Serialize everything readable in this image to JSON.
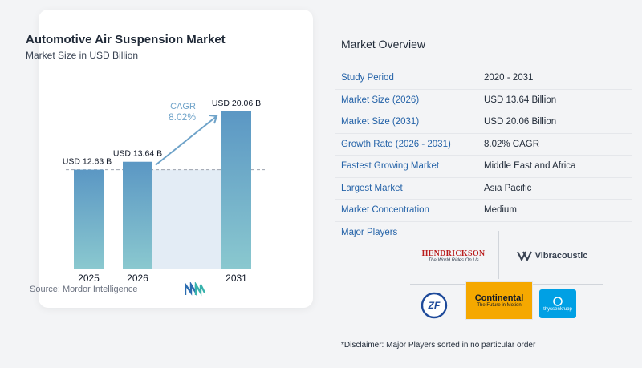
{
  "chart": {
    "title": "Automotive Air Suspension Market",
    "subtitle": "Market Size in USD Billion",
    "source": "Source:  Mordor Intelligence",
    "cagr_label": "CAGR",
    "cagr_value": "8.02%"
  },
  "chart_data": {
    "type": "bar",
    "categories": [
      "2025",
      "2026",
      "2031"
    ],
    "values": [
      12.63,
      13.64,
      20.06
    ],
    "data_labels": [
      "USD 12.63 B",
      "USD 13.64 B",
      "USD 20.06 B"
    ],
    "title": "Automotive Air Suspension Market",
    "subtitle": "Market Size in USD Billion",
    "xlabel": "",
    "ylabel": "",
    "ylim": [
      0,
      20.06
    ],
    "annotations": [
      "CAGR",
      "8.02%"
    ],
    "grid": false
  },
  "overview": {
    "title": "Market Overview",
    "rows": [
      {
        "label": "Study Period",
        "value": "2020 - 2031"
      },
      {
        "label": "Market Size (2026)",
        "value": "USD 13.64 Billion"
      },
      {
        "label": "Market Size (2031)",
        "value": "USD 20.06 Billion"
      },
      {
        "label": "Growth Rate (2026 - 2031)",
        "value": "8.02% CAGR"
      },
      {
        "label": "Fastest Growing Market",
        "value": "Middle East and Africa"
      },
      {
        "label": "Largest Market",
        "value": "Asia Pacific"
      },
      {
        "label": "Market Concentration",
        "value": "Medium"
      }
    ]
  },
  "players": {
    "title": "Major Players",
    "hendrickson": "HENDRICKSON",
    "hendrickson_tagline": "The World Rides On Us",
    "vibracoustic": "Vibracoustic",
    "zf": "ZF",
    "continental": "Continental",
    "continental_tagline": "The Future in Motion",
    "thyssenkrupp": "thyssenkrupp"
  },
  "disclaimer": "*Disclaimer: Major Players sorted in no particular order",
  "colors": {
    "bar_top": "#5b97c4",
    "bar_bottom": "#8ac8cf",
    "accent_blue": "#2563a8",
    "arrow": "#6fa3c9"
  }
}
